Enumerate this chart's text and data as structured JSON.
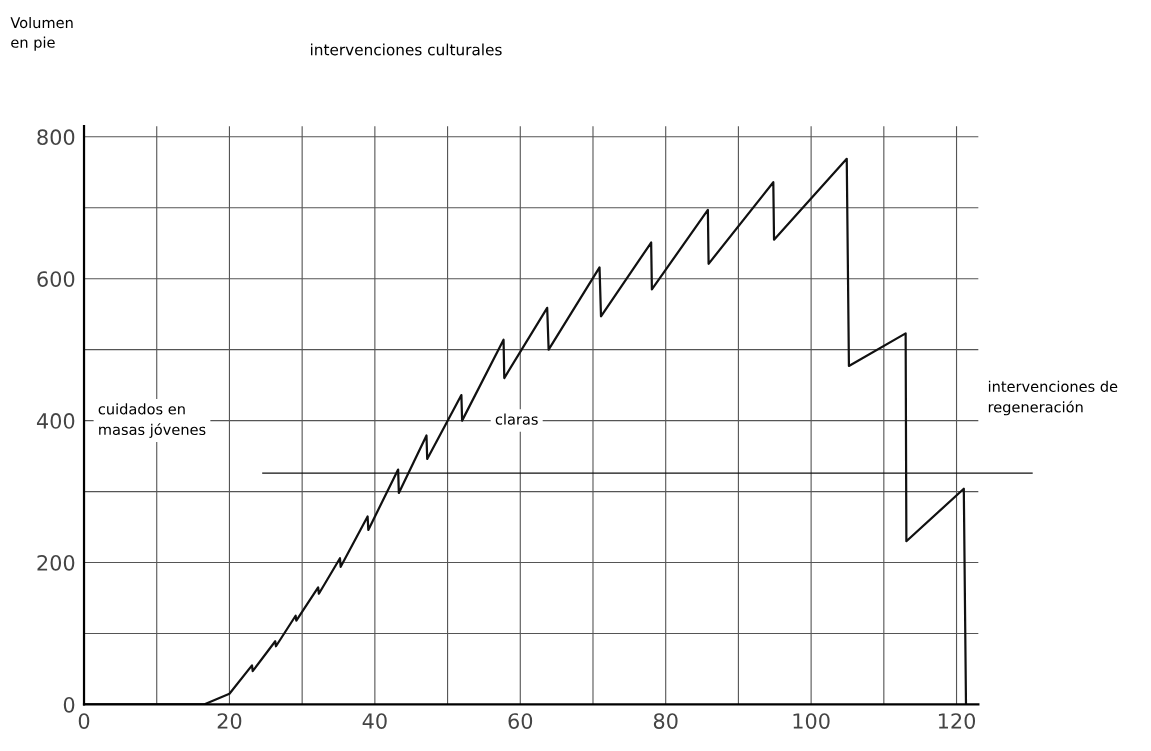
{
  "chart_data": {
    "type": "line",
    "title": "intervenciones culturales",
    "x": [
      0,
      16.5,
      20,
      23.1,
      23.2,
      26.3,
      26.4,
      29.1,
      29.2,
      32.2,
      32.3,
      35.2,
      35.3,
      39,
      39.1,
      43.2,
      43.3,
      47.1,
      47.2,
      51.9,
      52,
      57.7,
      57.8,
      63.7,
      63.9,
      70.9,
      71.1,
      78.0,
      78.1,
      85.8,
      85.9,
      94.8,
      94.9,
      104.9,
      105.2,
      113.0,
      113.1,
      121.0,
      121.3
    ],
    "values": [
      0,
      0,
      15,
      55,
      47,
      89,
      82,
      125,
      118,
      165,
      156,
      206,
      194,
      265,
      246,
      331,
      298,
      379,
      346,
      436,
      400,
      514,
      460,
      559,
      500,
      616,
      547,
      651,
      585,
      697,
      621,
      736,
      655,
      769,
      477,
      523,
      230,
      304,
      0
    ],
    "color": "#111111",
    "marker": "none",
    "line_style": "solid",
    "grid": true,
    "xlim": [
      0,
      123
    ],
    "ylim": [
      0,
      815
    ],
    "xticks": [
      0,
      {
        "value": 10,
        "label": null
      },
      20,
      {
        "value": 30,
        "label": null
      },
      40,
      {
        "value": 50,
        "label": null
      },
      60,
      {
        "value": 70,
        "label": null
      },
      80,
      {
        "value": 90,
        "label": null
      },
      100,
      {
        "value": 110,
        "label": null
      },
      120
    ],
    "yticks": [
      0,
      {
        "value": 100,
        "label": null
      },
      200,
      {
        "value": 300,
        "label": null
      },
      400,
      {
        "value": 500,
        "label": null
      },
      600,
      {
        "value": 700,
        "label": null
      },
      800
    ],
    "ref_lines": [
      {
        "axis": "y",
        "value": 326,
        "color": "#111111"
      }
    ],
    "annotations": [
      "Volumen\nen pie",
      "cuidados en\nmasas jóvenes",
      "claras",
      "intervenciones de\nregeneración"
    ]
  }
}
